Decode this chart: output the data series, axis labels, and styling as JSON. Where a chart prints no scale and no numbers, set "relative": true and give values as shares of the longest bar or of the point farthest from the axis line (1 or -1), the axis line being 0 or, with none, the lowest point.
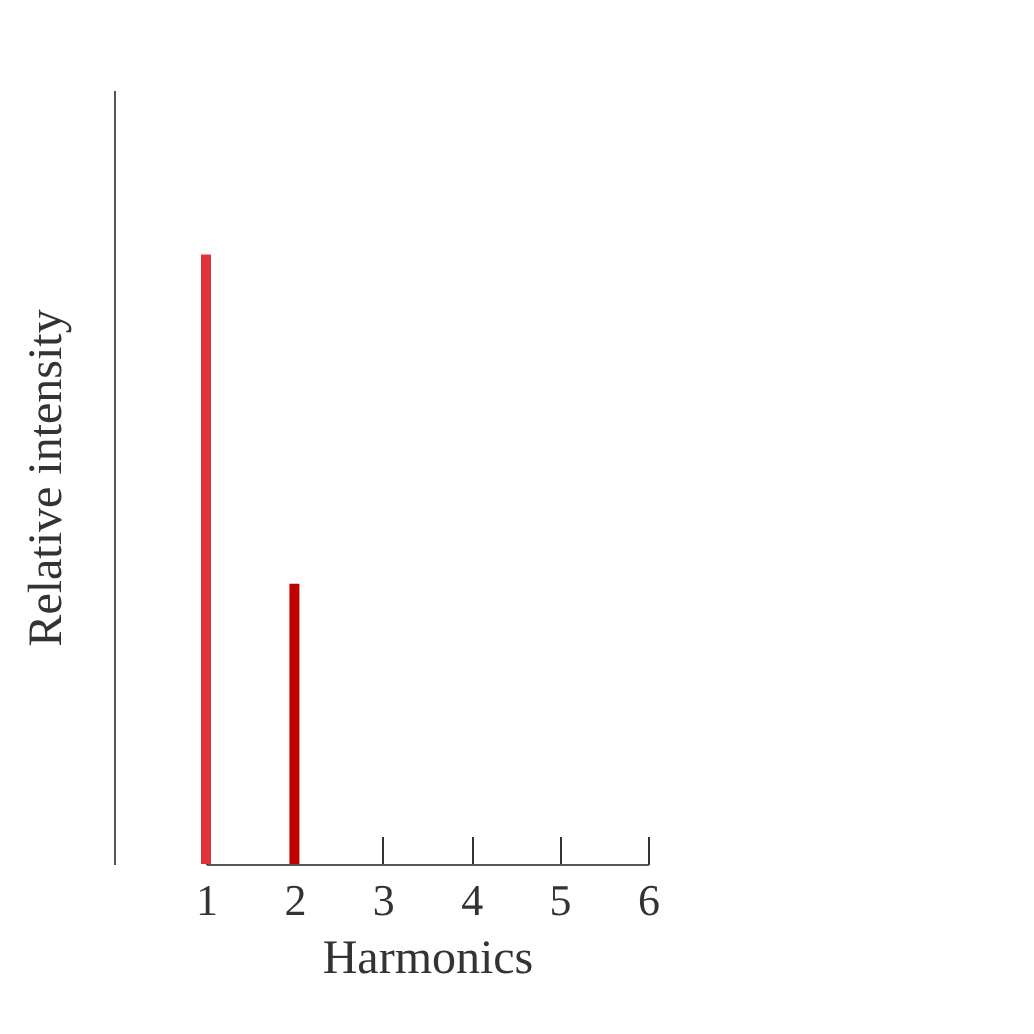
{
  "chart_data": {
    "type": "bar",
    "relative": true,
    "xlabel": "Harmonics",
    "ylabel": "Relative intensity",
    "categories": [
      "1",
      "2",
      "3",
      "4",
      "5",
      "6"
    ],
    "values": [
      1,
      0.46,
      0,
      0,
      0,
      0
    ],
    "colors": [
      "#e0323c",
      "#c00000",
      "#333333",
      "#333333",
      "#333333",
      "#333333"
    ],
    "grid": false,
    "legend": false
  }
}
